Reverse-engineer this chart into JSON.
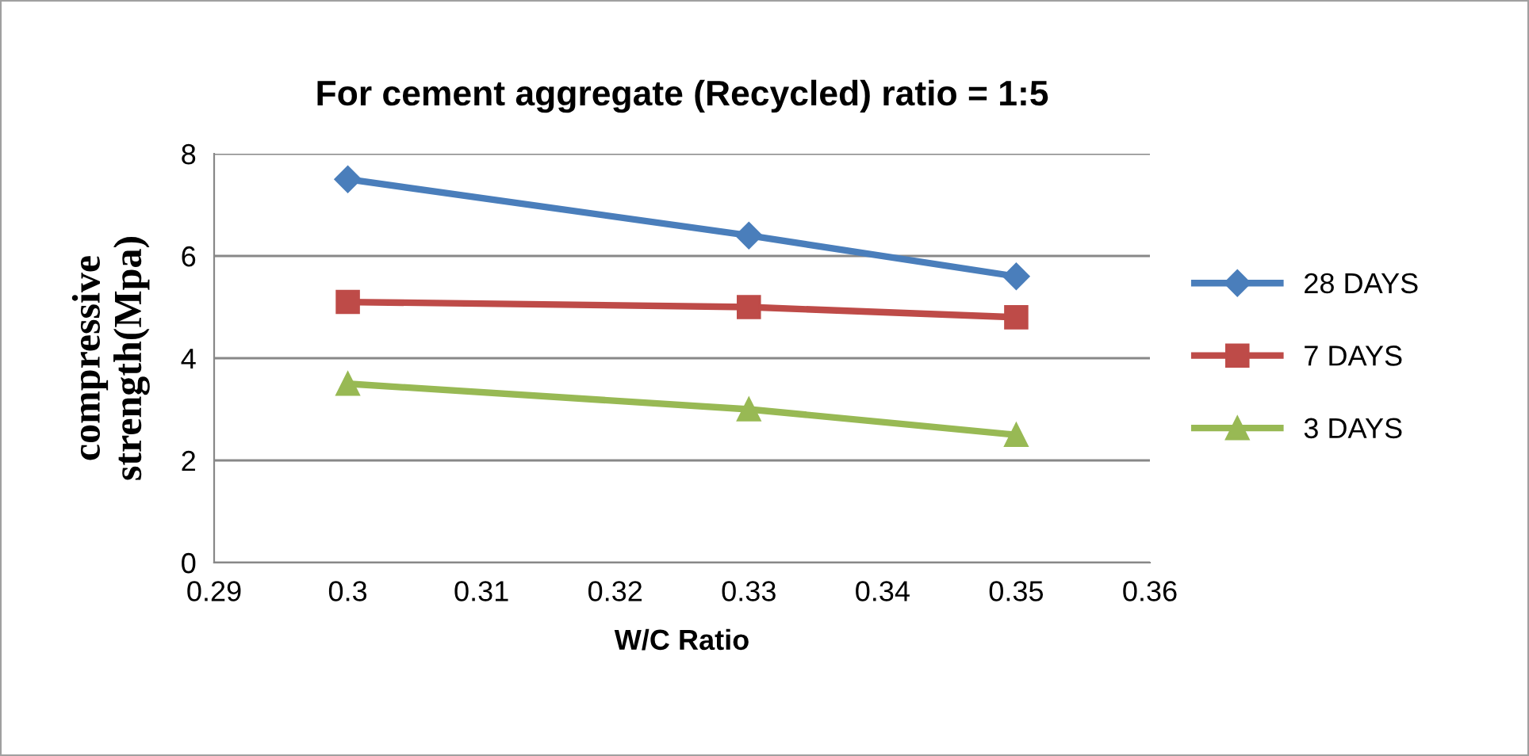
{
  "chart_data": {
    "type": "line",
    "title": "For cement aggregate (Recycled) ratio = 1:5",
    "xlabel": "W/C Ratio",
    "ylabel": "compressive\nstrength(Mpa)",
    "x": [
      0.3,
      0.33,
      0.35
    ],
    "series": [
      {
        "name": "28 DAYS",
        "color": "#4a7ebb",
        "marker": "diamond",
        "values": [
          7.5,
          6.4,
          5.6
        ]
      },
      {
        "name": "7 DAYS",
        "color": "#be4b48",
        "marker": "square",
        "values": [
          5.1,
          5.0,
          4.8
        ]
      },
      {
        "name": "3 DAYS",
        "color": "#98b954",
        "marker": "triangle",
        "values": [
          3.5,
          3.0,
          2.5
        ]
      }
    ],
    "xlim": [
      0.29,
      0.36
    ],
    "xticks": [
      0.29,
      0.3,
      0.31,
      0.32,
      0.33,
      0.34,
      0.35,
      0.36
    ],
    "ylim": [
      0,
      8
    ],
    "yticks": [
      0,
      2,
      4,
      6,
      8
    ],
    "grid": "y",
    "legend": "right",
    "line_style": "solid"
  }
}
